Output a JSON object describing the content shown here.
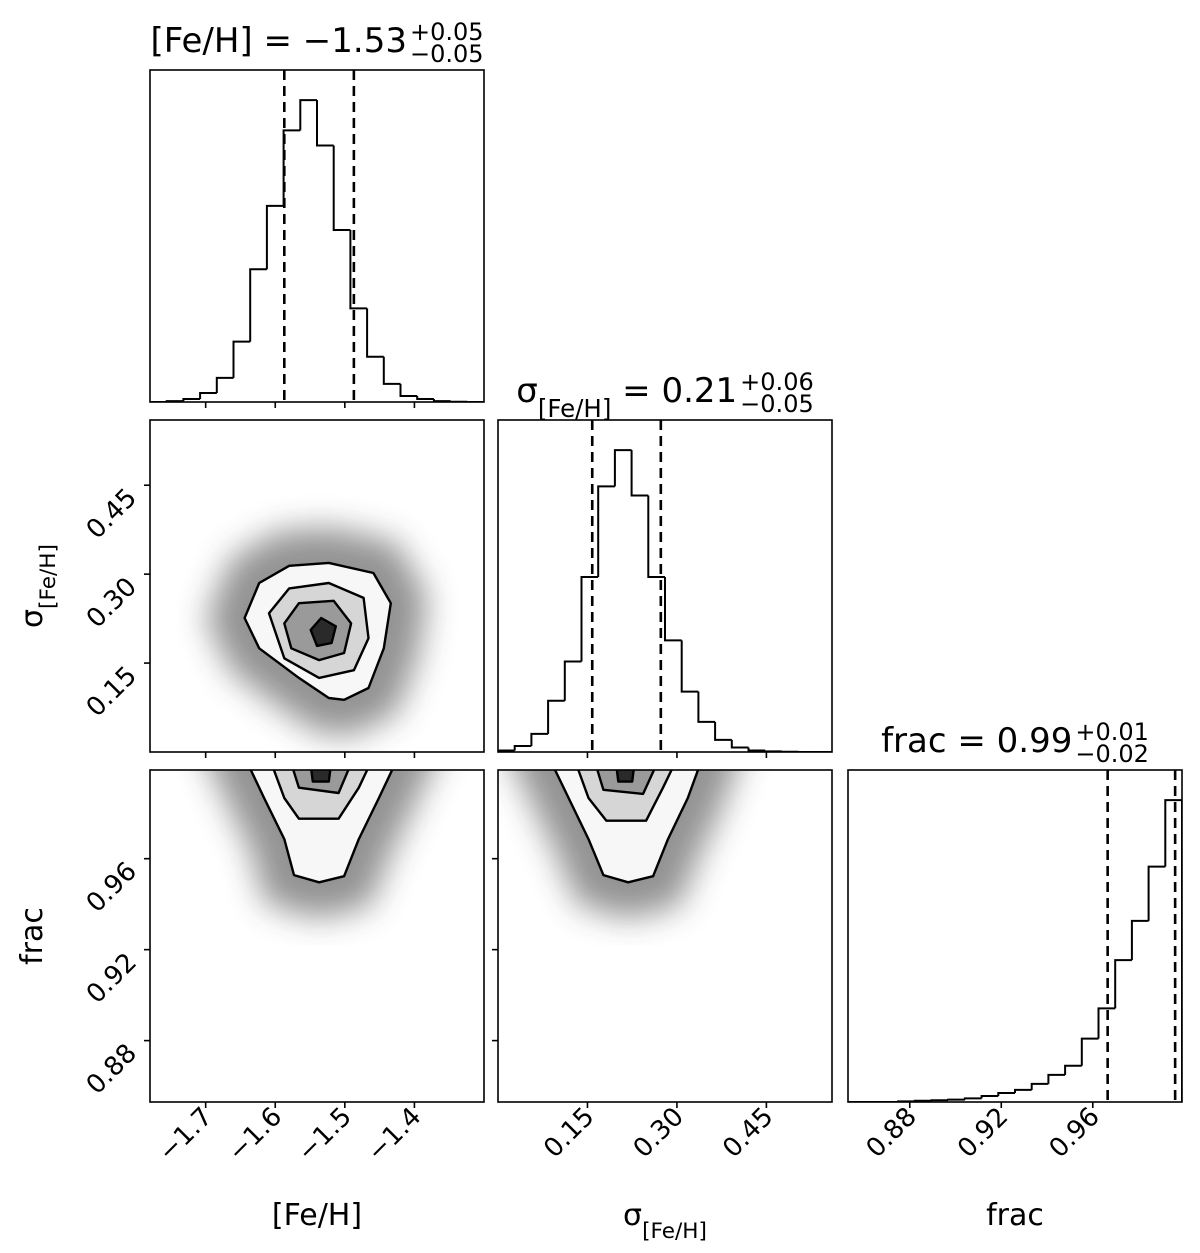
{
  "chart_data": {
    "type": "corner",
    "contour_colors": [
      "#f7f7f7",
      "#d6d6d6",
      "#9a9a9a",
      "#2a2a2a"
    ],
    "hist_ylim": [
      0,
      1.1
    ],
    "params": [
      {
        "label": [
          {
            "text": "[Fe/H]"
          }
        ],
        "lim": [
          -1.78,
          -1.3
        ],
        "ticks": [
          {
            "value": -1.7,
            "label": "−1.7"
          },
          {
            "value": -1.6,
            "label": "−1.6"
          },
          {
            "value": -1.5,
            "label": "−1.5"
          },
          {
            "value": -1.4,
            "label": "−1.4"
          }
        ],
        "title": {
          "runs": [
            {
              "text": "[Fe/H] = −1.53"
            }
          ],
          "upper": "+0.05",
          "lower": "−0.05"
        },
        "quantiles": [
          -1.587,
          -1.487
        ],
        "bins": [
          -1.78,
          -1.756,
          -1.732,
          -1.708,
          -1.684,
          -1.66,
          -1.636,
          -1.612,
          -1.588,
          -1.564,
          -1.54,
          -1.516,
          -1.492,
          -1.468,
          -1.444,
          -1.42,
          -1.396,
          -1.372,
          -1.348,
          -1.324,
          -1.3
        ],
        "counts": [
          0.0,
          0.003,
          0.01,
          0.03,
          0.08,
          0.2,
          0.44,
          0.65,
          0.9,
          1.0,
          0.85,
          0.57,
          0.31,
          0.15,
          0.06,
          0.02,
          0.01,
          0.003,
          0.001,
          0.0
        ]
      },
      {
        "label": [
          {
            "text": "σ"
          },
          {
            "text": "[Fe/H]",
            "sub": true
          }
        ],
        "lim": [
          0.0,
          0.56
        ],
        "ticks": [
          0.15,
          {
            "value": 0.3,
            "label": "0.30"
          },
          0.45
        ],
        "title": {
          "runs": [
            {
              "text": "σ"
            },
            {
              "text": "[Fe/H]",
              "sub": true
            },
            {
              "text": " = 0.21"
            }
          ],
          "upper": "+0.06",
          "lower": "−0.05"
        },
        "quantiles": [
          0.158,
          0.273
        ],
        "bins": [
          0,
          0.028,
          0.056,
          0.084,
          0.112,
          0.14,
          0.168,
          0.196,
          0.224,
          0.252,
          0.28,
          0.308,
          0.336,
          0.364,
          0.392,
          0.42,
          0.448,
          0.476,
          0.504,
          0.532,
          0.56
        ],
        "counts": [
          0.005,
          0.02,
          0.06,
          0.17,
          0.3,
          0.58,
          0.88,
          1.0,
          0.85,
          0.58,
          0.37,
          0.2,
          0.1,
          0.04,
          0.015,
          0.005,
          0.002,
          0.001,
          0.0,
          0.0
        ]
      },
      {
        "label": [
          {
            "text": "frac"
          }
        ],
        "lim": [
          0.853,
          0.999
        ],
        "ticks": [
          0.88,
          0.92,
          0.96
        ],
        "title": {
          "runs": [
            {
              "text": "frac = 0.99"
            }
          ],
          "upper": "+0.01",
          "lower": "−0.02"
        },
        "quantiles": [
          0.9665,
          0.996
        ],
        "bins": [
          0.853,
          0.8603,
          0.8676,
          0.8749,
          0.8822,
          0.8895,
          0.8968,
          0.9041,
          0.9114,
          0.9187,
          0.926,
          0.9333,
          0.9406,
          0.9479,
          0.9552,
          0.9625,
          0.9698,
          0.9771,
          0.9844,
          0.9917,
          0.999
        ],
        "counts": [
          0.0,
          0.0,
          0.0,
          0.002,
          0.004,
          0.006,
          0.008,
          0.012,
          0.02,
          0.03,
          0.04,
          0.06,
          0.09,
          0.12,
          0.21,
          0.31,
          0.47,
          0.6,
          0.78,
          1.0
        ]
      }
    ],
    "pairs": [
      {
        "x": 0,
        "y": 1,
        "contours": [
          {
            "x": [
              -1.644,
              -1.623,
              -1.58,
              -1.523,
              -1.459,
              -1.434,
              -1.444,
              -1.466,
              -1.501,
              -1.523,
              -1.566,
              -1.623
            ],
            "y": [
              0.226,
              0.285,
              0.314,
              0.319,
              0.302,
              0.251,
              0.175,
              0.108,
              0.088,
              0.091,
              0.125,
              0.175
            ]
          },
          {
            "x": [
              -1.609,
              -1.58,
              -1.523,
              -1.473,
              -1.466,
              -1.487,
              -1.537,
              -1.587
            ],
            "y": [
              0.234,
              0.276,
              0.285,
              0.26,
              0.192,
              0.138,
              0.125,
              0.158
            ]
          },
          {
            "x": [
              -1.587,
              -1.566,
              -1.516,
              -1.491,
              -1.501,
              -1.537,
              -1.577
            ],
            "y": [
              0.217,
              0.251,
              0.255,
              0.217,
              0.167,
              0.155,
              0.175
            ]
          },
          {
            "x": [
              -1.549,
              -1.534,
              -1.513,
              -1.519,
              -1.54
            ],
            "y": [
              0.206,
              0.226,
              0.212,
              0.184,
              0.179
            ]
          }
        ]
      },
      {
        "x": 0,
        "y": 2,
        "contours": [
          {
            "x": [
              -1.644,
              -1.616,
              -1.587,
              -1.573,
              -1.537,
              -1.501,
              -1.48,
              -1.451,
              -1.423
            ],
            "y": [
              1.0048,
              0.9867,
              0.9686,
              0.9528,
              0.9496,
              0.9523,
              0.9686,
              0.9867,
              1.0048
            ]
          },
          {
            "x": [
              -1.609,
              -1.587,
              -1.566,
              -1.509,
              -1.48,
              -1.459
            ],
            "y": [
              1.0048,
              0.9867,
              0.9776,
              0.9776,
              0.9912,
              1.0048
            ]
          },
          {
            "x": [
              -1.58,
              -1.566,
              -1.509,
              -1.487
            ],
            "y": [
              1.0048,
              0.9912,
              0.9889,
              1.0048
            ]
          },
          {
            "x": [
              -1.549,
              -1.52,
              -1.523,
              -1.546
            ],
            "y": [
              1.0011,
              1.0011,
              0.9939,
              0.9939
            ]
          }
        ]
      },
      {
        "x": 1,
        "y": 2,
        "contours": [
          {
            "x": [
              0.085,
              0.1183,
              0.1517,
              0.1767,
              0.2183,
              0.26,
              0.285,
              0.3183,
              0.3433
            ],
            "y": [
              1.0048,
              0.9867,
              0.9686,
              0.9528,
              0.9496,
              0.9523,
              0.9686,
              0.9867,
              1.0048
            ]
          },
          {
            "x": [
              0.1267,
              0.1517,
              0.1817,
              0.2483,
              0.2767,
              0.3017
            ],
            "y": [
              1.0048,
              0.9867,
              0.9767,
              0.9767,
              0.9912,
              1.0048
            ]
          },
          {
            "x": [
              0.16,
              0.1767,
              0.2433,
              0.2717
            ],
            "y": [
              1.0048,
              0.9903,
              0.9885,
              1.0048
            ]
          },
          {
            "x": [
              0.1983,
              0.2283,
              0.225,
              0.2017
            ],
            "y": [
              1.0011,
              1.0011,
              0.9939,
              0.9939
            ]
          }
        ]
      }
    ]
  }
}
